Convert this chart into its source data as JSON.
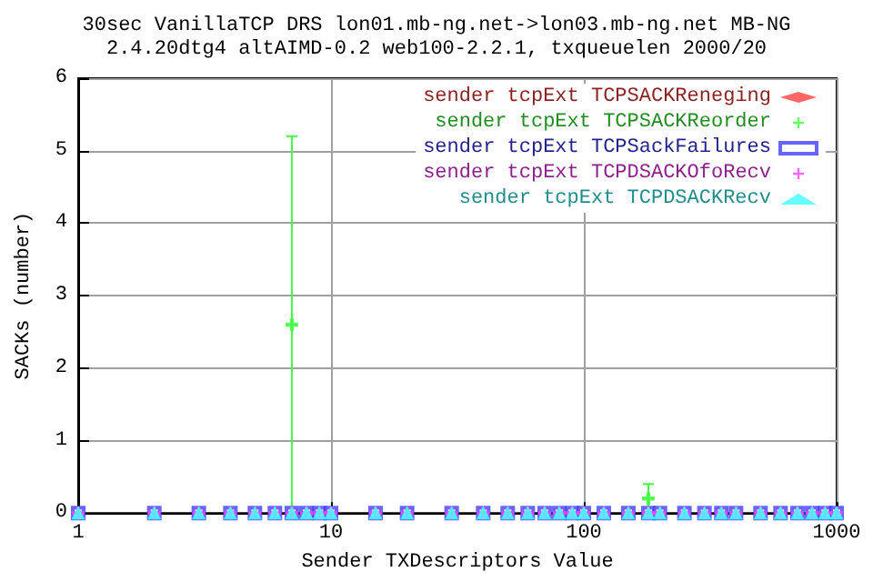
{
  "chart_data": {
    "type": "scatter",
    "title": "30sec VanillaTCP DRS lon01.mb-ng.net->lon03.mb-ng.net MB-NG",
    "subtitle": "2.4.20dtg4 altAIMD-0.2 web100-2.2.1, txqueuelen 2000/20",
    "xlabel": "Sender TXDescriptors Value",
    "ylabel": "SACKs (number)",
    "x": [
      1,
      2,
      3,
      4,
      5,
      6,
      7,
      8,
      9,
      10,
      15,
      20,
      30,
      40,
      50,
      60,
      70,
      80,
      90,
      100,
      120,
      150,
      180,
      200,
      250,
      300,
      350,
      400,
      500,
      600,
      700,
      800,
      900,
      1000
    ],
    "series": [
      {
        "name": "sender tcpExt TCPSACKReneging",
        "color": "#ff4040",
        "marker": "diamond",
        "values": [
          0,
          0,
          0,
          0,
          0,
          0,
          0,
          0,
          0,
          0,
          0,
          0,
          0,
          0,
          0,
          0,
          0,
          0,
          0,
          0,
          0,
          0,
          0,
          0,
          0,
          0,
          0,
          0,
          0,
          0,
          0,
          0,
          0,
          0
        ]
      },
      {
        "name": "sender tcpExt TCPSACKReorder",
        "color": "#40ff40",
        "marker": "cross",
        "values": [
          0,
          0,
          0,
          0,
          0,
          0,
          2.6,
          0,
          0,
          0,
          0,
          0,
          0,
          0,
          0,
          0,
          0,
          0,
          0,
          0,
          0,
          0,
          0.2,
          0,
          0,
          0,
          0,
          0,
          0,
          0,
          0,
          0,
          0,
          0
        ],
        "errors": [
          null,
          null,
          null,
          null,
          null,
          null,
          2.6,
          null,
          null,
          null,
          null,
          null,
          null,
          null,
          null,
          null,
          null,
          null,
          null,
          null,
          null,
          null,
          0.2,
          null,
          null,
          null,
          null,
          null,
          null,
          null,
          null,
          null,
          null,
          null
        ]
      },
      {
        "name": "sender tcpExt TCPSackFailures",
        "color": "#4040ff",
        "marker": "square",
        "values": [
          0,
          0,
          0,
          0,
          0,
          0,
          0,
          0,
          0,
          0,
          0,
          0,
          0,
          0,
          0,
          0,
          0,
          0,
          0,
          0,
          0,
          0,
          0,
          0,
          0,
          0,
          0,
          0,
          0,
          0,
          0,
          0,
          0,
          0
        ]
      },
      {
        "name": "sender tcpExt TCPDSACKOfoRecv",
        "color": "#ff40ff",
        "marker": "cross",
        "values": [
          0,
          0,
          0,
          0,
          0,
          0,
          0,
          0,
          0,
          0,
          0,
          0,
          0,
          0,
          0,
          0,
          0,
          0,
          0,
          0,
          0,
          0,
          0,
          0,
          0,
          0,
          0,
          0,
          0,
          0,
          0,
          0,
          0,
          0
        ]
      },
      {
        "name": "sender tcpExt TCPDSACKRecv",
        "color": "#40ffff",
        "marker": "triangle",
        "values": [
          0,
          0,
          0,
          0,
          0,
          0,
          0,
          0,
          0,
          0,
          0,
          0,
          0,
          0,
          0,
          0,
          0,
          0,
          0,
          0,
          0,
          0,
          0,
          0,
          0,
          0,
          0,
          0,
          0,
          0,
          0,
          0,
          0,
          0
        ]
      }
    ],
    "xlim": [
      1,
      1000
    ],
    "xticks": [
      1,
      10,
      100,
      1000
    ],
    "ylim": [
      0,
      6
    ],
    "yticks": [
      0,
      1,
      2,
      3,
      4,
      5,
      6
    ],
    "log": "x",
    "grid": true,
    "legend": "top right"
  }
}
